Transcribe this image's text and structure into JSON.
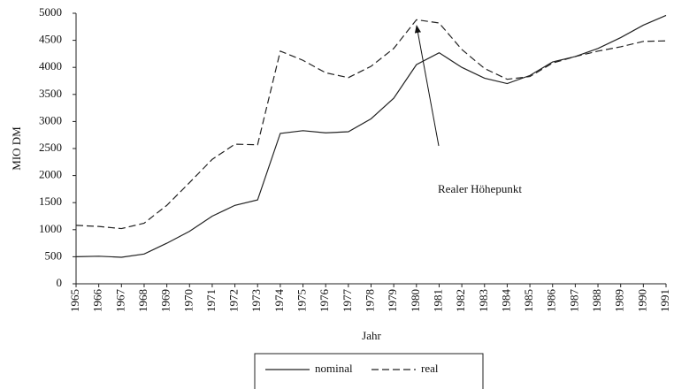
{
  "chart_data": {
    "type": "line",
    "y_label": "MIO DM",
    "x_label": "Jahr",
    "annotation": "Realer Höhepunkt",
    "x": [
      1965,
      1966,
      1967,
      1968,
      1969,
      1970,
      1971,
      1972,
      1973,
      1974,
      1975,
      1976,
      1977,
      1978,
      1979,
      1980,
      1981,
      1982,
      1983,
      1984,
      1985,
      1986,
      1987,
      1988,
      1989,
      1990,
      1991
    ],
    "series": [
      {
        "name": "nominal",
        "color": "#222",
        "line_style": "solid",
        "values": [
          500,
          510,
          490,
          550,
          750,
          970,
          1250,
          1450,
          1550,
          2780,
          2830,
          2790,
          2810,
          3050,
          3430,
          4050,
          4270,
          4000,
          3800,
          3700,
          3850,
          4100,
          4200,
          4350,
          4550,
          4780,
          4960
        ]
      },
      {
        "name": "real",
        "color": "#222",
        "line_style": "dashed",
        "values": [
          1080,
          1060,
          1020,
          1120,
          1450,
          1870,
          2300,
          2580,
          2570,
          4300,
          4130,
          3900,
          3810,
          4020,
          4350,
          4880,
          4820,
          4330,
          3980,
          3780,
          3830,
          4080,
          4200,
          4300,
          4380,
          4480,
          4490
        ]
      }
    ],
    "xlim": [
      1965,
      1991
    ],
    "xticks": [
      1965,
      1966,
      1967,
      1968,
      1969,
      1970,
      1971,
      1972,
      1973,
      1974,
      1975,
      1976,
      1977,
      1978,
      1979,
      1980,
      1981,
      1982,
      1983,
      1984,
      1985,
      1986,
      1987,
      1988,
      1989,
      1990,
      1991
    ],
    "ylim": [
      0,
      5000
    ],
    "yticks": [
      0,
      500,
      1000,
      1500,
      2000,
      2500,
      3000,
      3500,
      4000,
      4500,
      5000
    ],
    "grid": false
  }
}
